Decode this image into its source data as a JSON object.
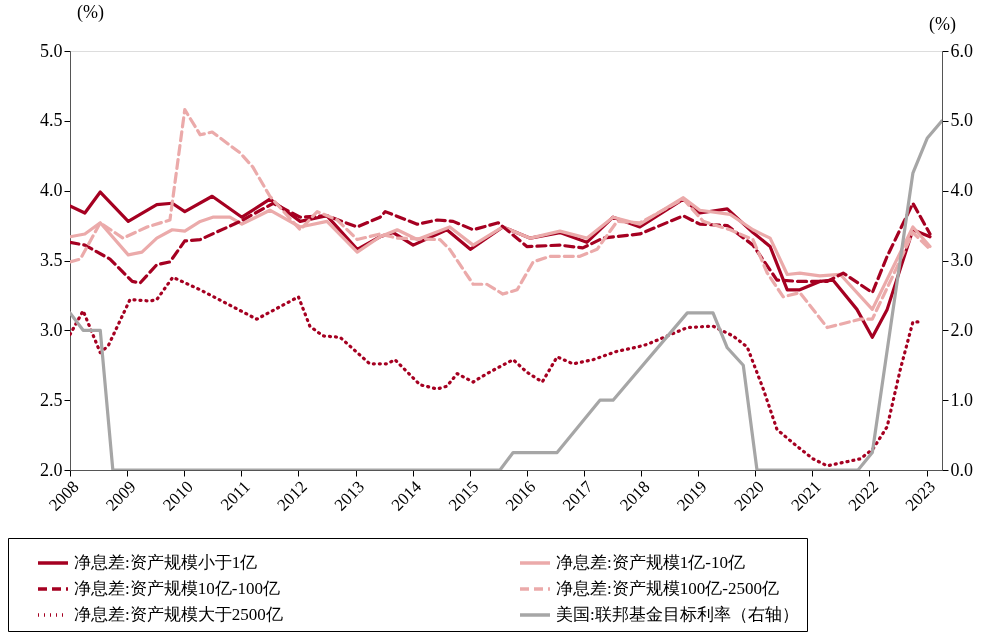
{
  "chart_data": {
    "type": "line",
    "ylabel": "(%)",
    "y2label": "(%)",
    "xlim": [
      2008,
      2023.27
    ],
    "xticks": [
      2008,
      2009,
      2010,
      2011,
      2012,
      2013,
      2014,
      2015,
      2016,
      2017,
      2018,
      2019,
      2020,
      2021,
      2022,
      2023
    ],
    "ylim": [
      2.0,
      5.0
    ],
    "yticks": [
      {
        "value": 2,
        "label": "2.0"
      },
      {
        "value": 2.5,
        "label": "2.5"
      },
      {
        "value": 3,
        "label": "3.0"
      },
      {
        "value": 3.5,
        "label": "3.5"
      },
      {
        "value": 4,
        "label": "4.0"
      },
      {
        "value": 4.5,
        "label": "4.5"
      },
      {
        "value": 5,
        "label": "5.0"
      }
    ],
    "y2lim": [
      0,
      6
    ],
    "y2ticks": [
      {
        "value": 0,
        "label": "0.0"
      },
      {
        "value": 1,
        "label": "1.0"
      },
      {
        "value": 2,
        "label": "2.0"
      },
      {
        "value": 3,
        "label": "3.0"
      },
      {
        "value": 4,
        "label": "4.0"
      },
      {
        "value": 5,
        "label": "5.0"
      },
      {
        "value": 6,
        "label": "6.0"
      }
    ],
    "grid": false,
    "legend": "bottom",
    "marker": "none",
    "series": [
      {
        "name": "净息差:资产规模小于1亿",
        "color": "#a50021",
        "line_style": "solid",
        "x": [
          2008.0,
          2008.26,
          2008.53,
          2009.02,
          2009.52,
          2009.79,
          2010.01,
          2010.49,
          2011.01,
          2011.5,
          2012.03,
          2012.5,
          2013.03,
          2013.43,
          2013.66,
          2014.01,
          2014.6,
          2015.01,
          2015.58,
          2016.06,
          2016.58,
          2017.05,
          2017.51,
          2017.98,
          2018.74,
          2019.03,
          2019.51,
          2019.96,
          2020.26,
          2020.56,
          2020.78,
          2021.13,
          2021.36,
          2021.78,
          2022.05,
          2022.31,
          2022.76,
          2023.06
        ],
        "values": [
          3.89,
          3.84,
          3.99,
          3.78,
          3.9,
          3.91,
          3.85,
          3.96,
          3.81,
          3.94,
          3.78,
          3.82,
          3.58,
          3.67,
          3.7,
          3.61,
          3.72,
          3.58,
          3.74,
          3.66,
          3.7,
          3.63,
          3.81,
          3.74,
          3.94,
          3.84,
          3.87,
          3.7,
          3.6,
          3.29,
          3.29,
          3.35,
          3.36,
          3.15,
          2.95,
          3.15,
          3.72,
          3.67
        ]
      },
      {
        "name": "净息差:资产规模1亿-10亿",
        "color": "#ebaaaa",
        "line_style": "solid",
        "x": [
          2008.0,
          2008.26,
          2008.53,
          2009.02,
          2009.26,
          2009.52,
          2009.79,
          2010.01,
          2010.28,
          2010.5,
          2010.8,
          2011.01,
          2011.5,
          2012.03,
          2012.5,
          2013.03,
          2013.43,
          2013.73,
          2014.08,
          2014.65,
          2015.06,
          2015.58,
          2016.06,
          2016.58,
          2017.05,
          2017.51,
          2017.98,
          2018.74,
          2019.03,
          2019.56,
          2019.96,
          2020.26,
          2020.56,
          2020.78,
          2021.13,
          2021.49,
          2022.05,
          2022.76,
          2023.06
        ],
        "values": [
          3.67,
          3.69,
          3.77,
          3.54,
          3.56,
          3.66,
          3.72,
          3.71,
          3.78,
          3.81,
          3.81,
          3.76,
          3.86,
          3.74,
          3.78,
          3.56,
          3.67,
          3.72,
          3.65,
          3.74,
          3.61,
          3.74,
          3.66,
          3.71,
          3.66,
          3.81,
          3.76,
          3.95,
          3.86,
          3.83,
          3.72,
          3.66,
          3.4,
          3.41,
          3.39,
          3.4,
          3.15,
          3.74,
          3.6
        ]
      },
      {
        "name": "净息差:资产规模10亿-100亿",
        "color": "#a50021",
        "line_style": "dashed",
        "x": [
          2008.0,
          2008.26,
          2008.7,
          2009.09,
          2009.23,
          2009.52,
          2009.75,
          2010.01,
          2010.28,
          2010.98,
          2011.56,
          2012.03,
          2012.5,
          2013.03,
          2013.43,
          2013.52,
          2014.08,
          2014.43,
          2014.71,
          2015.06,
          2015.5,
          2016.0,
          2016.58,
          2016.98,
          2017.33,
          2017.98,
          2018.74,
          2019.03,
          2019.51,
          2019.96,
          2020.38,
          2020.78,
          2021.26,
          2021.54,
          2022.05,
          2022.31,
          2022.76,
          2023.06
        ],
        "values": [
          3.63,
          3.61,
          3.51,
          3.35,
          3.34,
          3.47,
          3.49,
          3.64,
          3.65,
          3.78,
          3.91,
          3.81,
          3.82,
          3.74,
          3.81,
          3.85,
          3.76,
          3.79,
          3.78,
          3.72,
          3.77,
          3.6,
          3.61,
          3.59,
          3.66,
          3.69,
          3.82,
          3.76,
          3.75,
          3.61,
          3.36,
          3.35,
          3.35,
          3.41,
          3.27,
          3.53,
          3.91,
          3.69
        ]
      },
      {
        "name": "净息差:资产规模100亿-2500亿",
        "color": "#ebaaaa",
        "line_style": "dashed",
        "x": [
          2008.0,
          2008.18,
          2008.53,
          2008.93,
          2009.35,
          2009.75,
          2010.01,
          2010.28,
          2010.49,
          2010.98,
          2011.2,
          2011.5,
          2012.03,
          2012.33,
          2012.68,
          2013.03,
          2013.43,
          2013.73,
          2014.48,
          2014.65,
          2015.06,
          2015.3,
          2015.58,
          2015.83,
          2016.11,
          2016.41,
          2016.93,
          2017.23,
          2017.58,
          2017.98,
          2018.74,
          2019.09,
          2019.56,
          2019.96,
          2020.21,
          2020.49,
          2020.78,
          2021.26,
          2021.84,
          2022.05,
          2022.41,
          2022.76,
          2023.06
        ],
        "values": [
          3.49,
          3.51,
          3.77,
          3.66,
          3.74,
          3.79,
          4.58,
          4.4,
          4.42,
          4.27,
          4.17,
          3.96,
          3.72,
          3.85,
          3.79,
          3.65,
          3.69,
          3.66,
          3.65,
          3.58,
          3.33,
          3.33,
          3.26,
          3.29,
          3.49,
          3.53,
          3.53,
          3.58,
          3.78,
          3.77,
          3.94,
          3.78,
          3.72,
          3.65,
          3.41,
          3.24,
          3.27,
          3.02,
          3.08,
          3.08,
          3.39,
          3.7,
          3.58
        ]
      },
      {
        "name": "净息差:资产规模大于2500亿",
        "color": "#a50021",
        "line_style": "dotted",
        "x": [
          2008.0,
          2008.23,
          2008.53,
          2008.67,
          2009.05,
          2009.4,
          2009.52,
          2009.8,
          2010.28,
          2011.27,
          2012.0,
          2012.2,
          2012.43,
          2012.73,
          2013.25,
          2013.43,
          2013.55,
          2013.69,
          2014.13,
          2014.43,
          2014.6,
          2014.78,
          2015.06,
          2015.3,
          2015.76,
          2016.0,
          2016.27,
          2016.53,
          2016.81,
          2017.16,
          2017.58,
          2017.93,
          2018.11,
          2018.81,
          2019.26,
          2019.61,
          2019.86,
          2020.14,
          2020.38,
          2020.73,
          2021.01,
          2021.26,
          2021.61,
          2021.84,
          2022.06,
          2022.31,
          2022.54,
          2022.76,
          2022.89
        ],
        "values": [
          2.97,
          3.14,
          2.84,
          2.89,
          3.22,
          3.21,
          3.22,
          3.38,
          3.29,
          3.08,
          3.24,
          3.03,
          2.96,
          2.95,
          2.76,
          2.76,
          2.76,
          2.79,
          2.61,
          2.58,
          2.6,
          2.69,
          2.63,
          2.69,
          2.79,
          2.7,
          2.63,
          2.81,
          2.76,
          2.79,
          2.85,
          2.88,
          2.9,
          3.02,
          3.03,
          2.96,
          2.88,
          2.58,
          2.29,
          2.17,
          2.08,
          2.03,
          2.06,
          2.08,
          2.15,
          2.31,
          2.72,
          3.06,
          3.06
        ]
      },
      {
        "name": "美国:联邦基金目标利率（右轴）",
        "color": "#a6a6a6",
        "line_style": "solid",
        "axis": "y2",
        "x": [
          2008.0,
          2008.23,
          2008.53,
          2008.75,
          2015.53,
          2015.76,
          2016.53,
          2017.28,
          2017.51,
          2018.81,
          2019.26,
          2019.51,
          2019.79,
          2020.03,
          2021.8,
          2022.05,
          2022.76,
          2023.01,
          2023.27
        ],
        "values": [
          2.25,
          2.0,
          2.0,
          0,
          0,
          0.25,
          0.25,
          1.0,
          1.0,
          2.25,
          2.25,
          1.75,
          1.5,
          0,
          0,
          0.25,
          4.25,
          4.75,
          5.0
        ]
      }
    ]
  }
}
